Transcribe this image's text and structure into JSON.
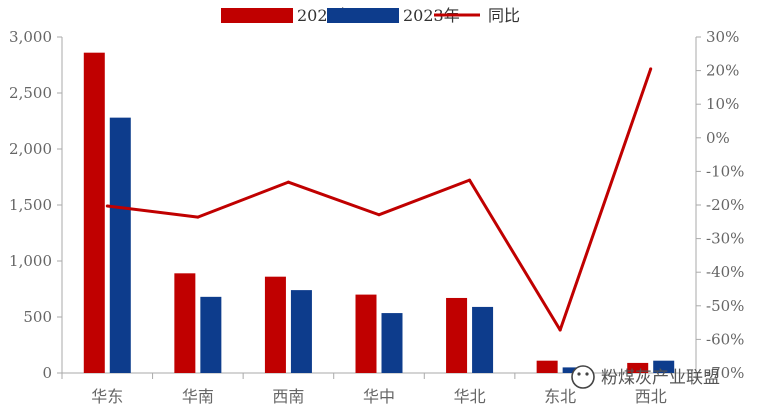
{
  "chart_data": {
    "type": "bar",
    "categories": [
      "华东",
      "华南",
      "西南",
      "华中",
      "华北",
      "东北",
      "西北"
    ],
    "series": [
      {
        "name": "2022年",
        "type": "bar",
        "axis": "left",
        "color": "#c00000",
        "values": [
          2860,
          890,
          860,
          700,
          670,
          110,
          90
        ]
      },
      {
        "name": "2023年",
        "type": "bar",
        "axis": "left",
        "color": "#0d3c8c",
        "values": [
          2280,
          680,
          740,
          535,
          590,
          50,
          110
        ]
      },
      {
        "name": "同比",
        "type": "line",
        "axis": "right",
        "color": "#c00000",
        "values": [
          -20.3,
          -23.6,
          -13.2,
          -22.9,
          -12.6,
          -57.2,
          20.5
        ]
      }
    ],
    "y_left": {
      "min": 0,
      "max": 3000,
      "step": 500,
      "tick_labels": [
        "0",
        "500",
        "1,000",
        "1,500",
        "2,000",
        "2,500",
        "3,000"
      ]
    },
    "y_right": {
      "min": -70,
      "max": 30,
      "step": 10,
      "tick_labels": [
        "-70%",
        "-60%",
        "-50%",
        "-40%",
        "-30%",
        "-20%",
        "-10%",
        "0%",
        "10%",
        "20%",
        "30%"
      ]
    },
    "legend_position": "top",
    "grid": false
  },
  "watermark": {
    "text": "粉煤灰产业联盟"
  }
}
